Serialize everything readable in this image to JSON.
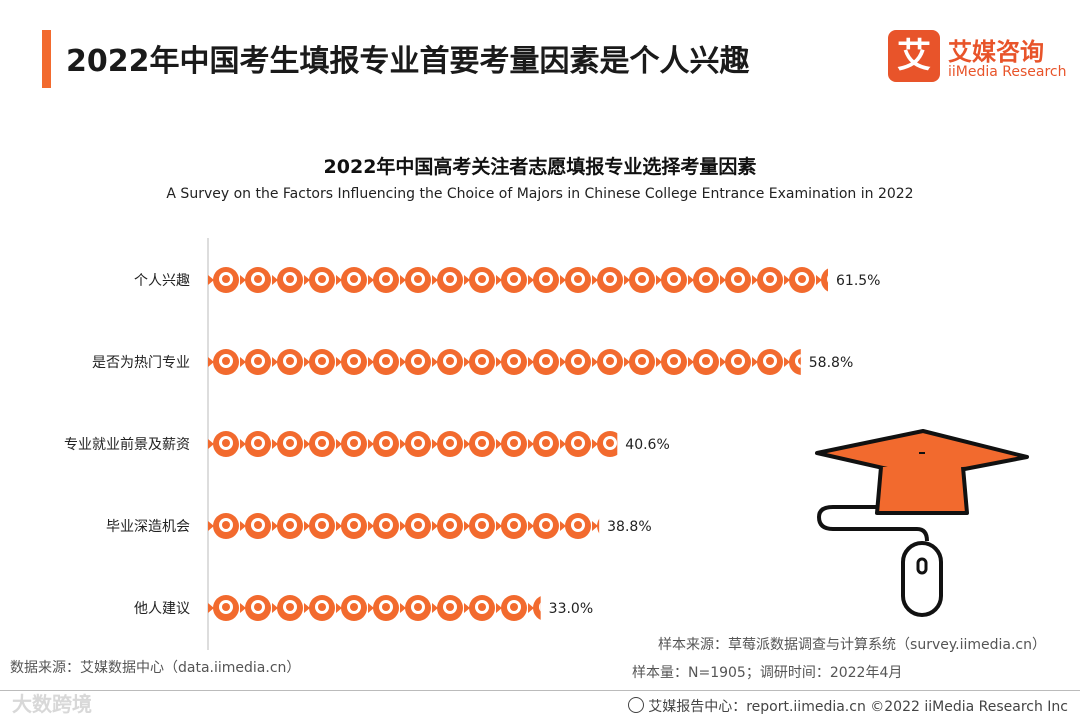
{
  "header": {
    "title": "2022年中国考生填报专业首要考量因素是个人兴趣",
    "logo_mark": "艾",
    "logo_cn": "艾媒咨询",
    "logo_en": "iiMedia Research"
  },
  "chart_data": {
    "type": "bar",
    "orientation": "horizontal",
    "title": "2022年中国高考关注者志愿填报专业选择考量因素",
    "subtitle": "A Survey on the Factors Influencing the Choice of Majors in Chinese College Entrance Examination in 2022",
    "categories": [
      "个人兴趣",
      "是否为热门专业",
      "专业就业前景及薪资",
      "毕业深造机会",
      "他人建议"
    ],
    "values": [
      61.5,
      58.8,
      40.6,
      38.8,
      33.0
    ],
    "value_labels": [
      "61.5%",
      "58.8%",
      "40.6%",
      "38.8%",
      "33.0%"
    ],
    "unit": "%",
    "bar_color": "#f26a2e",
    "bar_style": "pictograph"
  },
  "footer": {
    "data_source": "数据来源：艾媒数据中心（data.iimedia.cn）",
    "sample_source": "样本来源：草莓派数据调查与计算系统（survey.iimedia.cn）",
    "sample_size": "样本量：N=1905；调研时间：2022年4月",
    "report_center": "艾媒报告中心：report.iimedia.cn  ©2022  iiMedia Research  Inc",
    "watermark": "大数跨境"
  }
}
